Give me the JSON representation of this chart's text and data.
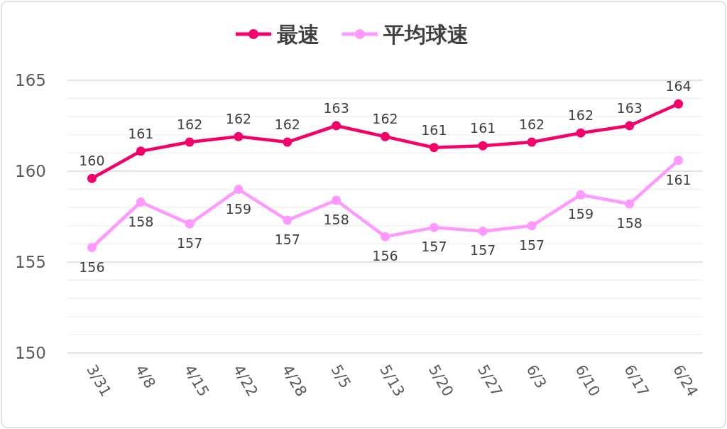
{
  "chart_data": {
    "type": "line",
    "categories": [
      "3/31",
      "4/8",
      "4/15",
      "4/22",
      "4/28",
      "5/5",
      "5/13",
      "5/20",
      "5/27",
      "6/3",
      "6/10",
      "6/17",
      "6/24"
    ],
    "series": [
      {
        "name": "最速",
        "color": "#f5006a",
        "values": [
          159.6,
          161.1,
          161.6,
          161.9,
          161.6,
          162.5,
          161.9,
          161.3,
          161.4,
          161.6,
          162.1,
          162.5,
          163.7
        ],
        "value_labels": [
          "160",
          "161",
          "162",
          "162",
          "162",
          "163",
          "162",
          "161",
          "161",
          "162",
          "162",
          "163",
          "164"
        ]
      },
      {
        "name": "平均球速",
        "color": "#ff99ff",
        "values": [
          155.8,
          158.3,
          157.1,
          159.0,
          157.3,
          158.4,
          156.4,
          156.9,
          156.7,
          157.0,
          158.7,
          158.2,
          160.6
        ],
        "value_labels": [
          "156",
          "158",
          "157",
          "159",
          "157",
          "158",
          "156",
          "157",
          "157",
          "157",
          "159",
          "158",
          "161"
        ]
      }
    ],
    "ylim": [
      150,
      165
    ],
    "yticks": [
      150,
      {
        "value": 151,
        "label": null
      },
      {
        "value": 152,
        "label": null
      },
      {
        "value": 153,
        "label": null
      },
      {
        "value": 154,
        "label": null
      },
      155,
      {
        "value": 156,
        "label": null
      },
      {
        "value": 157,
        "label": null
      },
      {
        "value": 158,
        "label": null
      },
      {
        "value": 159,
        "label": null
      },
      160,
      {
        "value": 161,
        "label": null
      },
      {
        "value": 162,
        "label": null
      },
      {
        "value": 163,
        "label": null
      },
      {
        "value": 164,
        "label": null
      },
      165
    ],
    "grid": "y",
    "legend": "top",
    "marker": "circle",
    "line_style": "solid"
  }
}
